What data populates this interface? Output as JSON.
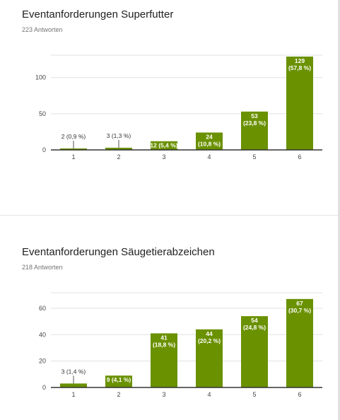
{
  "chart_data": [
    {
      "type": "bar",
      "title": "Eventanforderungen Superfutter",
      "subtitle": "223 Antworten",
      "categories": [
        "1",
        "2",
        "3",
        "4",
        "5",
        "6"
      ],
      "values": [
        2,
        3,
        12,
        24,
        53,
        129
      ],
      "labels": [
        [
          "2 (0,9 %)"
        ],
        [
          "3 (1,3 %)"
        ],
        [
          "12 (5,4 %)"
        ],
        [
          "24",
          "(10,8 %)"
        ],
        [
          "53",
          "(23,8 %)"
        ],
        [
          "129",
          "(57,8 %)"
        ]
      ],
      "yticks": [
        0,
        50,
        100
      ],
      "ylim": [
        0,
        130
      ],
      "grid": true,
      "color": "#6a9100"
    },
    {
      "type": "bar",
      "title": "Eventanforderungen Säugetierabzeichen",
      "subtitle": "218 Antworten",
      "categories": [
        "1",
        "2",
        "3",
        "4",
        "5",
        "6"
      ],
      "values": [
        3,
        9,
        41,
        44,
        54,
        67
      ],
      "labels": [
        [
          "3 (1,4 %)"
        ],
        [
          "9 (4,1 %)"
        ],
        [
          "41",
          "(18,8 %)"
        ],
        [
          "44",
          "(20,2 %)"
        ],
        [
          "54",
          "(24,8 %)"
        ],
        [
          "67",
          "(30,7 %)"
        ]
      ],
      "yticks": [
        0,
        20,
        40,
        60
      ],
      "ylim": [
        0,
        68
      ],
      "grid": true,
      "color": "#6a9100"
    }
  ]
}
